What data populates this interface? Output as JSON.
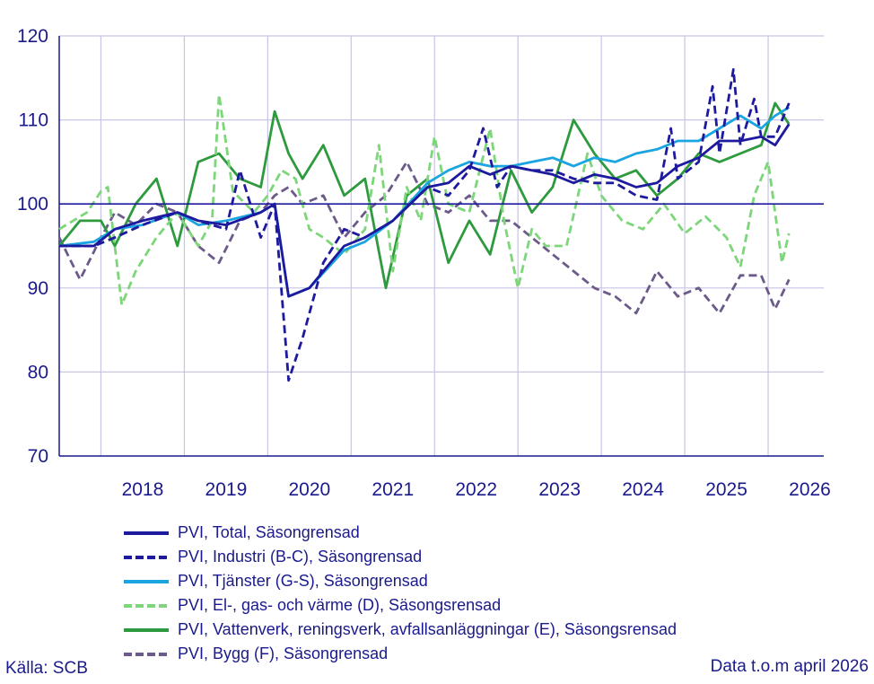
{
  "chart_data": {
    "type": "line",
    "title": "",
    "xlabel": "",
    "ylabel": "",
    "ylim": [
      70,
      120
    ],
    "yticks": [
      70,
      80,
      90,
      100,
      110,
      120
    ],
    "x_start": "2017-07",
    "x_end": "2026-09",
    "x_tick_labels": [
      "2018",
      "2019",
      "2020",
      "2021",
      "2022",
      "2023",
      "2024",
      "2025",
      "2026"
    ],
    "reference_line": 100,
    "grid": true,
    "legend_position": "bottom",
    "series": [
      {
        "name": "PVI, Total, Säsongrensad",
        "color": "#1d1a9e",
        "dash": "solid",
        "x": [
          "2017-07",
          "2017-12",
          "2018-03",
          "2018-07",
          "2018-12",
          "2019-03",
          "2019-07",
          "2019-12",
          "2020-02",
          "2020-04",
          "2020-07",
          "2020-12",
          "2021-03",
          "2021-07",
          "2021-12",
          "2022-03",
          "2022-06",
          "2022-09",
          "2022-12",
          "2023-03",
          "2023-06",
          "2023-09",
          "2023-12",
          "2024-03",
          "2024-06",
          "2024-09",
          "2024-12",
          "2025-03",
          "2025-06",
          "2025-09",
          "2025-12",
          "2026-02",
          "2026-04"
        ],
        "values": [
          95,
          95,
          97,
          98,
          99,
          98,
          97.5,
          99,
          100,
          89,
          90,
          95,
          96,
          98,
          102,
          102.5,
          104.5,
          103.5,
          104.5,
          104,
          103.5,
          102.5,
          103.5,
          103,
          102,
          102.5,
          104.5,
          105.5,
          107.5,
          107.5,
          108,
          107,
          109.5
        ]
      },
      {
        "name": "PVI, Industri (B-C), Säsongrensad",
        "color": "#1d1a9e",
        "dash": "dashed",
        "x": [
          "2017-07",
          "2017-12",
          "2018-03",
          "2018-07",
          "2018-12",
          "2019-03",
          "2019-07",
          "2019-09",
          "2019-12",
          "2020-02",
          "2020-04",
          "2020-06",
          "2020-09",
          "2020-12",
          "2021-03",
          "2021-07",
          "2021-12",
          "2022-03",
          "2022-06",
          "2022-08",
          "2022-10",
          "2022-12",
          "2023-03",
          "2023-06",
          "2023-09",
          "2023-12",
          "2024-03",
          "2024-06",
          "2024-09",
          "2024-11",
          "2024-12",
          "2025-03",
          "2025-05",
          "2025-06",
          "2025-08",
          "2025-09",
          "2025-11",
          "2025-12",
          "2026-02",
          "2026-04"
        ],
        "values": [
          95,
          95,
          96,
          97.5,
          99,
          98,
          97,
          104,
          96,
          100,
          79,
          84,
          93,
          97,
          96,
          98,
          102,
          101,
          104,
          109,
          102,
          104.5,
          104,
          104,
          103,
          102.5,
          102.5,
          101,
          100.5,
          109,
          103,
          105,
          114,
          106,
          116,
          107,
          112.5,
          108,
          108,
          112
        ]
      },
      {
        "name": "PVI, Tjänster (G-S), Säsongrensad",
        "color": "#1ba5e0",
        "dash": "solid",
        "x": [
          "2017-07",
          "2017-12",
          "2018-03",
          "2018-07",
          "2018-12",
          "2019-03",
          "2019-07",
          "2019-12",
          "2020-02",
          "2020-04",
          "2020-07",
          "2020-12",
          "2021-03",
          "2021-07",
          "2021-12",
          "2022-03",
          "2022-06",
          "2022-09",
          "2022-12",
          "2023-03",
          "2023-06",
          "2023-09",
          "2023-12",
          "2024-03",
          "2024-06",
          "2024-09",
          "2024-12",
          "2025-03",
          "2025-06",
          "2025-09",
          "2025-12",
          "2026-02",
          "2026-04"
        ],
        "values": [
          95,
          95.5,
          97,
          97.5,
          99,
          97.5,
          98,
          99,
          100,
          89,
          90,
          94.5,
          95.5,
          98,
          102.5,
          104,
          105,
          104.5,
          104.5,
          105,
          105.5,
          104.5,
          105.5,
          105,
          106,
          106.5,
          107.5,
          107.5,
          109,
          110.5,
          109,
          110.5,
          111.5
        ]
      },
      {
        "name": "PVI, El-, gas- och värme (D), Säsongsrensad",
        "color": "#7dd67a",
        "dash": "dashed",
        "x": [
          "2017-07",
          "2017-09",
          "2017-11",
          "2018-01",
          "2018-02",
          "2018-04",
          "2018-06",
          "2018-09",
          "2018-12",
          "2019-03",
          "2019-05",
          "2019-06",
          "2019-08",
          "2019-11",
          "2020-01",
          "2020-03",
          "2020-05",
          "2020-07",
          "2020-09",
          "2020-12",
          "2021-03",
          "2021-05",
          "2021-07",
          "2021-09",
          "2021-11",
          "2022-01",
          "2022-03",
          "2022-06",
          "2022-09",
          "2022-11",
          "2023-01",
          "2023-03",
          "2023-05",
          "2023-08",
          "2023-11",
          "2024-01",
          "2024-04",
          "2024-07",
          "2024-10",
          "2025-01",
          "2025-04",
          "2025-07",
          "2025-09",
          "2025-11",
          "2026-01",
          "2026-03",
          "2026-04"
        ],
        "values": [
          97,
          98,
          99,
          101.5,
          102,
          88,
          92,
          96,
          99,
          95,
          98,
          113,
          101.5,
          99,
          101,
          104,
          103,
          97,
          96,
          94,
          97,
          107,
          92,
          102,
          98,
          108,
          100,
          99,
          109,
          98,
          90,
          97,
          95,
          95,
          106,
          101,
          98,
          97,
          100,
          96.5,
          98.5,
          96,
          92.5,
          101,
          105,
          93,
          96.5
        ]
      },
      {
        "name": "PVI, Vattenverk, reningsverk, avfallsanläggningar (E), Säsongsrensad",
        "color": "#2e9a3e",
        "dash": "solid",
        "x": [
          "2017-07",
          "2017-10",
          "2018-01",
          "2018-03",
          "2018-06",
          "2018-09",
          "2018-12",
          "2019-03",
          "2019-06",
          "2019-09",
          "2019-12",
          "2020-02",
          "2020-04",
          "2020-06",
          "2020-09",
          "2020-12",
          "2021-03",
          "2021-06",
          "2021-09",
          "2021-12",
          "2022-03",
          "2022-06",
          "2022-09",
          "2022-12",
          "2023-03",
          "2023-06",
          "2023-09",
          "2023-12",
          "2024-03",
          "2024-06",
          "2024-09",
          "2024-12",
          "2025-03",
          "2025-06",
          "2025-09",
          "2025-12",
          "2026-02",
          "2026-04"
        ],
        "values": [
          95,
          98,
          98,
          95,
          100,
          103,
          95,
          105,
          106,
          103,
          102,
          111,
          106,
          103,
          107,
          101,
          103,
          90,
          101,
          103,
          93,
          98,
          94,
          104,
          99,
          102,
          110,
          106,
          103,
          104,
          101,
          103,
          106,
          105,
          106,
          107,
          112,
          109.5
        ]
      },
      {
        "name": "PVI, Bygg (F), Säsongrensad",
        "color": "#6c5b8a",
        "dash": "dashed",
        "x": [
          "2017-07",
          "2017-10",
          "2018-01",
          "2018-03",
          "2018-06",
          "2018-09",
          "2018-12",
          "2019-03",
          "2019-06",
          "2019-09",
          "2019-12",
          "2020-02",
          "2020-04",
          "2020-06",
          "2020-09",
          "2020-12",
          "2021-03",
          "2021-06",
          "2021-09",
          "2021-12",
          "2022-03",
          "2022-06",
          "2022-09",
          "2022-12",
          "2023-03",
          "2023-06",
          "2023-09",
          "2023-12",
          "2024-03",
          "2024-06",
          "2024-09",
          "2024-12",
          "2025-03",
          "2025-06",
          "2025-09",
          "2025-12",
          "2026-02",
          "2026-04"
        ],
        "values": [
          96,
          91,
          96,
          99,
          97.5,
          100,
          99,
          95,
          93,
          98,
          99,
          101,
          102,
          100,
          101,
          96,
          99,
          101,
          105,
          100,
          99,
          101,
          98,
          98,
          96,
          94,
          92,
          90,
          89,
          87,
          92,
          89,
          90,
          87,
          91.5,
          91.5,
          87.5,
          91
        ]
      }
    ]
  },
  "legend": {
    "items": [
      "PVI, Total, Säsongrensad",
      "PVI, Industri (B-C), Säsongrensad",
      "PVI, Tjänster (G-S), Säsongrensad",
      "PVI, El-, gas- och värme (D), Säsongsrensad",
      "PVI, Vattenverk, reningsverk, avfallsanläggningar (E), Säsongsrensad",
      "PVI, Bygg (F), Säsongrensad"
    ]
  },
  "footer": {
    "source": "Källa: SCB",
    "data_note": "Data t.o.m april 2026"
  }
}
